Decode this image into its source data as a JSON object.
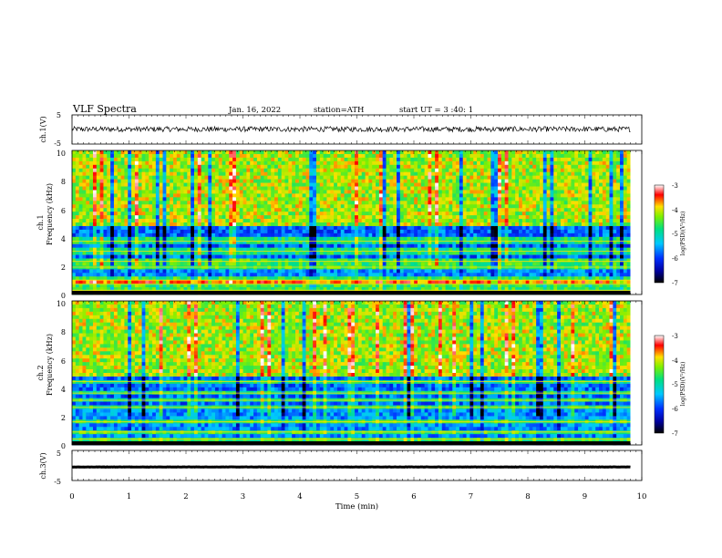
{
  "header": {
    "title": "VLF Spectra",
    "date": "Jan. 16, 2022",
    "station": "station=ATH",
    "start": "start UT =  3 :40: 1"
  },
  "chart_data": [
    {
      "type": "line",
      "name": "ch1-waveform",
      "ylabel": "ch.1(V)",
      "xlim": [
        0,
        10
      ],
      "ylim": [
        -5,
        5
      ],
      "yticks": [
        "5",
        "-5"
      ],
      "x_end": 9.8,
      "level": 0.1,
      "noise_amplitude": 0.9
    },
    {
      "type": "heatmap",
      "name": "ch1-spectrogram",
      "ylabel_top": "ch.1",
      "ylabel": "Frequency (kHz)",
      "xlim": [
        0,
        10
      ],
      "ylim": [
        0,
        10
      ],
      "x_end": 9.8,
      "yticks": [
        "0",
        "2",
        "4",
        "6",
        "8",
        "10"
      ],
      "colorbar": {
        "label": "log(PSD)(V²/Hz)",
        "range": [
          -7,
          -3
        ],
        "ticks": [
          "-3",
          "-4",
          "-5",
          "-6",
          "-7"
        ]
      },
      "bands_khz": [
        0.3,
        0.7,
        1.0,
        1.9,
        2.3,
        3.0,
        3.7
      ]
    },
    {
      "type": "heatmap",
      "name": "ch2-spectrogram",
      "ylabel_top": "ch.2",
      "ylabel": "Frequency (kHz)",
      "xlim": [
        0,
        10
      ],
      "ylim": [
        0,
        10
      ],
      "x_end": 9.8,
      "yticks": [
        "0",
        "2",
        "4",
        "6",
        "8",
        "10"
      ],
      "colorbar": {
        "label": "log(PSD)(V²/Hz)",
        "range": [
          -7,
          -3
        ],
        "ticks": [
          "-3",
          "-4",
          "-5",
          "-6",
          "-7"
        ]
      },
      "bands_khz": [
        0.4,
        0.9,
        1.6,
        2.6,
        3.1,
        3.6,
        4.4
      ]
    },
    {
      "type": "line",
      "name": "ch3-waveform",
      "ylabel": "ch.3(V)",
      "xlim": [
        0,
        10
      ],
      "ylim": [
        -5,
        5
      ],
      "yticks": [
        "5",
        "-5"
      ],
      "x_end": 9.8,
      "level": -0.5,
      "noise_amplitude": 0.05
    }
  ],
  "xaxis": {
    "label": "Time (min)",
    "ticks": [
      "0",
      "1",
      "2",
      "3",
      "4",
      "5",
      "6",
      "7",
      "8",
      "9",
      "10"
    ]
  }
}
